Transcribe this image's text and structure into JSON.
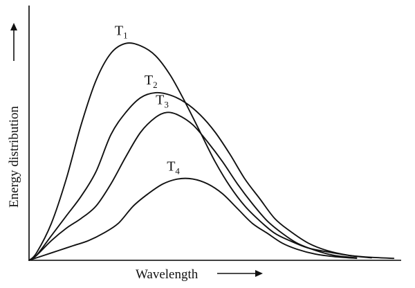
{
  "chart_data": {
    "type": "line",
    "title": "",
    "xlabel": "Wavelength",
    "ylabel": "Energy distribution",
    "grid": false,
    "legend": "none",
    "series": [
      {
        "name": "T1",
        "label_main": "T",
        "label_sub": "1",
        "points": [
          [
            0,
            0
          ],
          [
            0.02,
            0.03
          ],
          [
            0.06,
            0.15
          ],
          [
            0.1,
            0.33
          ],
          [
            0.14,
            0.55
          ],
          [
            0.18,
            0.73
          ],
          [
            0.22,
            0.84
          ],
          [
            0.26,
            0.88
          ],
          [
            0.3,
            0.87
          ],
          [
            0.34,
            0.83
          ],
          [
            0.38,
            0.75
          ],
          [
            0.42,
            0.64
          ],
          [
            0.46,
            0.52
          ],
          [
            0.5,
            0.4
          ],
          [
            0.54,
            0.3
          ],
          [
            0.58,
            0.22
          ],
          [
            0.62,
            0.16
          ],
          [
            0.66,
            0.11
          ],
          [
            0.7,
            0.08
          ],
          [
            0.75,
            0.05
          ],
          [
            0.8,
            0.035
          ],
          [
            0.86,
            0.02
          ],
          [
            0.92,
            0.012
          ],
          [
            0.98,
            0.008
          ]
        ]
      },
      {
        "name": "T2",
        "label_main": "T",
        "label_sub": "2",
        "points": [
          [
            0,
            0
          ],
          [
            0.02,
            0.02
          ],
          [
            0.06,
            0.1
          ],
          [
            0.1,
            0.18
          ],
          [
            0.14,
            0.26
          ],
          [
            0.18,
            0.36
          ],
          [
            0.22,
            0.51
          ],
          [
            0.26,
            0.6
          ],
          [
            0.3,
            0.66
          ],
          [
            0.34,
            0.68
          ],
          [
            0.38,
            0.67
          ],
          [
            0.42,
            0.64
          ],
          [
            0.46,
            0.59
          ],
          [
            0.5,
            0.52
          ],
          [
            0.54,
            0.43
          ],
          [
            0.58,
            0.33
          ],
          [
            0.62,
            0.25
          ],
          [
            0.66,
            0.17
          ],
          [
            0.7,
            0.12
          ],
          [
            0.75,
            0.07
          ],
          [
            0.8,
            0.04
          ],
          [
            0.86,
            0.02
          ],
          [
            0.92,
            0.01
          ]
        ]
      },
      {
        "name": "T3",
        "label_main": "T",
        "label_sub": "3",
        "points": [
          [
            0,
            0
          ],
          [
            0.02,
            0.02
          ],
          [
            0.06,
            0.08
          ],
          [
            0.1,
            0.13
          ],
          [
            0.14,
            0.17
          ],
          [
            0.18,
            0.22
          ],
          [
            0.22,
            0.31
          ],
          [
            0.26,
            0.42
          ],
          [
            0.3,
            0.52
          ],
          [
            0.34,
            0.58
          ],
          [
            0.37,
            0.6
          ],
          [
            0.4,
            0.59
          ],
          [
            0.44,
            0.55
          ],
          [
            0.48,
            0.48
          ],
          [
            0.52,
            0.4
          ],
          [
            0.56,
            0.31
          ],
          [
            0.6,
            0.23
          ],
          [
            0.64,
            0.16
          ],
          [
            0.68,
            0.11
          ],
          [
            0.72,
            0.07
          ],
          [
            0.77,
            0.04
          ],
          [
            0.82,
            0.02
          ],
          [
            0.88,
            0.01
          ]
        ]
      },
      {
        "name": "T4",
        "label_main": "T",
        "label_sub": "4",
        "points": [
          [
            0,
            0
          ],
          [
            0.04,
            0.02
          ],
          [
            0.08,
            0.04
          ],
          [
            0.12,
            0.06
          ],
          [
            0.16,
            0.08
          ],
          [
            0.2,
            0.11
          ],
          [
            0.24,
            0.15
          ],
          [
            0.28,
            0.22
          ],
          [
            0.32,
            0.27
          ],
          [
            0.36,
            0.31
          ],
          [
            0.4,
            0.33
          ],
          [
            0.44,
            0.33
          ],
          [
            0.48,
            0.31
          ],
          [
            0.52,
            0.27
          ],
          [
            0.56,
            0.21
          ],
          [
            0.6,
            0.15
          ],
          [
            0.64,
            0.11
          ],
          [
            0.68,
            0.07
          ],
          [
            0.72,
            0.045
          ],
          [
            0.77,
            0.025
          ],
          [
            0.82,
            0.015
          ],
          [
            0.88,
            0.008
          ]
        ]
      }
    ]
  }
}
